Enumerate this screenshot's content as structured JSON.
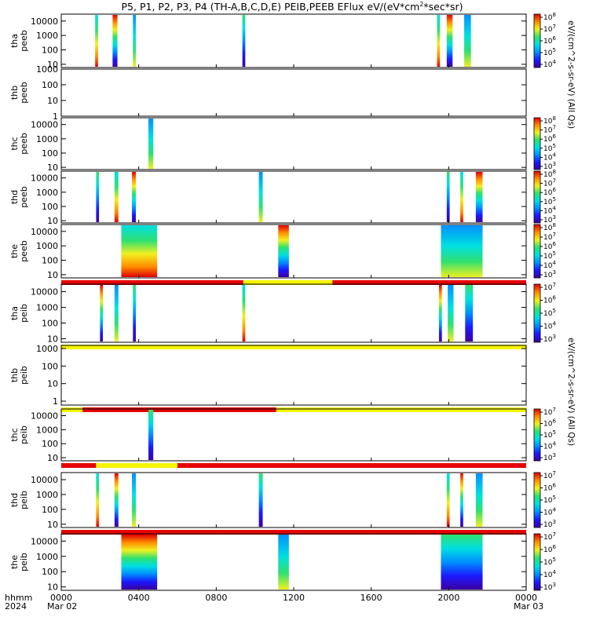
{
  "title": "P5, P1, P2, P3, P4 (TH-A,B,C,D,E) PEIB,PEEB EFlux eV/(eV*cm^2*sec*sr)",
  "title_parts": {
    "main": "P5, P1, P2, P3, P4 (TH-A,B,C,D,E) PEIB,PEEB EFlux eV/(eV*cm",
    "sup": "2",
    "tail": "*sec*sr)"
  },
  "xaxis": {
    "ticks": [
      "0000",
      "0400",
      "0800",
      "1200",
      "1600",
      "2000",
      "0000"
    ],
    "tick_hours": [
      0,
      4,
      8,
      12,
      16,
      20,
      24
    ],
    "start_date": "Mar 02",
    "end_date": "Mar 03",
    "unit_label": "hhmm",
    "year_label": "2024"
  },
  "colorbar_labels": {
    "peeb": "eV/(cm^2-s-sr-eV) (All Qs)",
    "peib": "eV/(cm^2-s-sr-eV) (All Qs)"
  },
  "colors": {
    "quality_bad": "#e60000",
    "quality_good": "#f5f500",
    "spectrogram_palette": [
      "#3c00a0",
      "#1a1aff",
      "#0090ff",
      "#00e0e0",
      "#30e070",
      "#f0f020",
      "#ff8c00",
      "#e00000"
    ]
  },
  "chart_data": [
    {
      "type": "heatmap",
      "panel": "tha_peeb",
      "ylabel": [
        "tha",
        "peeb"
      ],
      "yscale": "log",
      "yticks": [
        "10",
        "100",
        "1000",
        "10000"
      ],
      "ytick_values": [
        10,
        100,
        1000,
        10000
      ],
      "ylim": [
        6,
        30000
      ],
      "colorbar": {
        "scale": "log",
        "ticks": [
          "10^4",
          "10^5",
          "10^6",
          "10^7",
          "10^8"
        ]
      },
      "data_intervals_hours": [
        [
          1.75,
          1.9
        ],
        [
          2.65,
          2.9
        ],
        [
          3.7,
          3.85
        ],
        [
          9.35,
          9.5
        ],
        [
          19.4,
          19.55
        ],
        [
          19.9,
          20.2
        ],
        [
          20.8,
          21.15
        ]
      ]
    },
    {
      "type": "heatmap",
      "panel": "thb_peeb",
      "ylabel": [
        "thb",
        "peeb"
      ],
      "yscale": "log",
      "yticks": [
        "1",
        "10",
        "100",
        "1000"
      ],
      "ytick_values": [
        1,
        10,
        100,
        1000
      ],
      "ylim": [
        1,
        1000
      ],
      "colorbar": null,
      "data_intervals_hours": []
    },
    {
      "type": "heatmap",
      "panel": "thc_peeb",
      "ylabel": [
        "thc",
        "peeb"
      ],
      "yscale": "log",
      "yticks": [
        "10",
        "100",
        "1000",
        "10000"
      ],
      "ytick_values": [
        10,
        100,
        1000,
        10000
      ],
      "ylim": [
        7,
        30000
      ],
      "colorbar": {
        "scale": "log",
        "ticks": [
          "10^3",
          "10^4",
          "10^5",
          "10^6",
          "10^7",
          "10^8"
        ]
      },
      "data_intervals_hours": [
        [
          4.5,
          4.75
        ]
      ]
    },
    {
      "type": "heatmap",
      "panel": "thd_peeb",
      "ylabel": [
        "thd",
        "peeb"
      ],
      "yscale": "log",
      "yticks": [
        "10",
        "100",
        "1000",
        "10000"
      ],
      "ytick_values": [
        10,
        100,
        1000,
        10000
      ],
      "ylim": [
        7,
        30000
      ],
      "colorbar": {
        "scale": "log",
        "ticks": [
          "10^3",
          "10^4",
          "10^5",
          "10^6",
          "10^7",
          "10^8"
        ]
      },
      "data_intervals_hours": [
        [
          1.8,
          1.95
        ],
        [
          2.75,
          2.95
        ],
        [
          3.65,
          3.85
        ],
        [
          10.2,
          10.4
        ],
        [
          19.9,
          20.05
        ],
        [
          20.6,
          20.75
        ],
        [
          21.4,
          21.75
        ]
      ]
    },
    {
      "type": "heatmap",
      "panel": "the_peeb",
      "ylabel": [
        "the",
        "peeb"
      ],
      "yscale": "log",
      "yticks": [
        "10",
        "100",
        "1000",
        "10000"
      ],
      "ytick_values": [
        10,
        100,
        1000,
        10000
      ],
      "ylim": [
        6,
        30000
      ],
      "colorbar": {
        "scale": "log",
        "ticks": [
          "10^3",
          "10^4",
          "10^5",
          "10^6",
          "10^7",
          "10^8"
        ]
      },
      "data_intervals_hours": [
        [
          3.1,
          4.95
        ],
        [
          11.2,
          11.75
        ],
        [
          19.6,
          21.75
        ]
      ],
      "quality_flag_below": [
        {
          "from": 0,
          "to": 9.4,
          "flag": "bad"
        },
        {
          "from": 9.4,
          "to": 14.0,
          "flag": "good"
        },
        {
          "from": 14.0,
          "to": 24,
          "flag": "bad"
        }
      ]
    },
    {
      "type": "heatmap",
      "panel": "tha_peib",
      "ylabel": [
        "tha",
        "peib"
      ],
      "yscale": "log",
      "yticks": [
        "10",
        "100",
        "1000",
        "10000"
      ],
      "ytick_values": [
        10,
        100,
        1000,
        10000
      ],
      "ylim": [
        6,
        30000
      ],
      "colorbar": {
        "scale": "log",
        "ticks": [
          "10^3",
          "10^4",
          "10^5",
          "10^6",
          "10^7"
        ]
      },
      "data_intervals_hours": [
        [
          2.0,
          2.15
        ],
        [
          2.75,
          2.95
        ],
        [
          3.7,
          3.85
        ],
        [
          9.35,
          9.5
        ],
        [
          19.5,
          19.65
        ],
        [
          19.95,
          20.25
        ],
        [
          20.85,
          21.25
        ]
      ],
      "quality_flag_below": [
        {
          "from": 0,
          "to": 24,
          "flag": "good"
        }
      ]
    },
    {
      "type": "heatmap",
      "panel": "thb_peib",
      "ylabel": [
        "thb",
        "peib"
      ],
      "yscale": "log",
      "yticks": [
        "1",
        "10",
        "100",
        "1000"
      ],
      "ytick_values": [
        1,
        10,
        100,
        1000
      ],
      "ylim": [
        0.6,
        1500
      ],
      "colorbar": null,
      "data_intervals_hours": [],
      "quality_flag_below": [
        {
          "from": 0,
          "to": 1.1,
          "flag": "good"
        },
        {
          "from": 1.1,
          "to": 11.1,
          "flag": "bad"
        },
        {
          "from": 11.1,
          "to": 24,
          "flag": "good"
        }
      ]
    },
    {
      "type": "heatmap",
      "panel": "thc_peib",
      "ylabel": [
        "thc",
        "peib"
      ],
      "yscale": "log",
      "yticks": [
        "10",
        "100",
        "1000",
        "10000"
      ],
      "ytick_values": [
        10,
        100,
        1000,
        10000
      ],
      "ylim": [
        6,
        30000
      ],
      "colorbar": {
        "scale": "log",
        "ticks": [
          "10^3",
          "10^4",
          "10^5",
          "10^6",
          "10^7"
        ]
      },
      "data_intervals_hours": [
        [
          4.5,
          4.75
        ]
      ],
      "quality_flag_below": [
        {
          "from": 0,
          "to": 1.8,
          "flag": "bad"
        },
        {
          "from": 1.8,
          "to": 6.0,
          "flag": "good"
        },
        {
          "from": 6.0,
          "to": 24,
          "flag": "bad"
        }
      ]
    },
    {
      "type": "heatmap",
      "panel": "thd_peib",
      "ylabel": [
        "thd",
        "peib"
      ],
      "yscale": "log",
      "yticks": [
        "10",
        "100",
        "1000",
        "10000"
      ],
      "ytick_values": [
        10,
        100,
        1000,
        10000
      ],
      "ylim": [
        6,
        30000
      ],
      "colorbar": {
        "scale": "log",
        "ticks": [
          "10^3",
          "10^4",
          "10^5",
          "10^6",
          "10^7"
        ]
      },
      "data_intervals_hours": [
        [
          1.8,
          1.95
        ],
        [
          2.75,
          2.95
        ],
        [
          3.65,
          3.85
        ],
        [
          10.2,
          10.4
        ],
        [
          19.9,
          20.05
        ],
        [
          20.6,
          20.75
        ],
        [
          21.4,
          21.75
        ]
      ],
      "quality_flag_below": [
        {
          "from": 0,
          "to": 24,
          "flag": "bad"
        }
      ]
    },
    {
      "type": "heatmap",
      "panel": "the_peib",
      "ylabel": [
        "the",
        "peib"
      ],
      "yscale": "log",
      "yticks": [
        "10",
        "100",
        "1000",
        "10000"
      ],
      "ytick_values": [
        10,
        100,
        1000,
        10000
      ],
      "ylim": [
        6,
        30000
      ],
      "colorbar": {
        "scale": "log",
        "ticks": [
          "10^3",
          "10^4",
          "10^5",
          "10^6",
          "10^7"
        ]
      },
      "data_intervals_hours": [
        [
          3.1,
          4.95
        ],
        [
          11.2,
          11.75
        ],
        [
          19.6,
          21.75
        ]
      ]
    }
  ]
}
